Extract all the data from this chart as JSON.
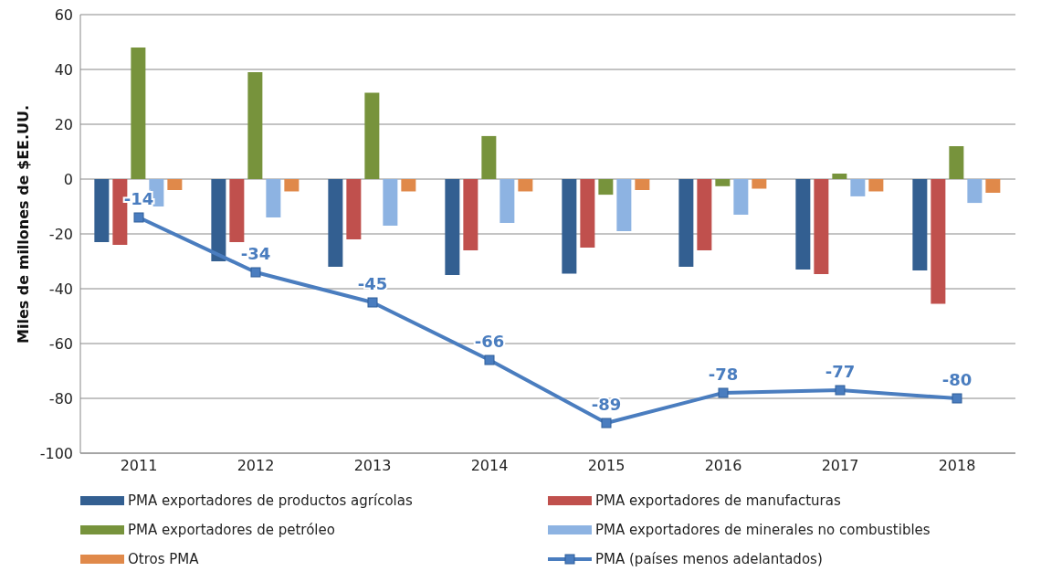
{
  "chart_data": {
    "type": "bar",
    "ylabel": "Miles de millones de $EE.UU.",
    "categories": [
      "2011",
      "2012",
      "2013",
      "2014",
      "2015",
      "2016",
      "2017",
      "2018"
    ],
    "ylim": [
      -100,
      60
    ],
    "yticks": [
      -100,
      -80,
      -60,
      -40,
      -20,
      0,
      20,
      40,
      60
    ],
    "grid": "y",
    "legend": "bottom",
    "marker": "square",
    "series": [
      {
        "name": "PMA exportadores de productos agrícolas",
        "color": "#335f91",
        "values": [
          -23,
          -30,
          -32,
          -35,
          -34.5,
          -32,
          -33,
          -33.3
        ]
      },
      {
        "name": "PMA exportadores de manufacturas",
        "color": "#c0504d",
        "values": [
          -24,
          -23,
          -22,
          -26,
          -25,
          -26,
          -34.7,
          -45.5
        ]
      },
      {
        "name": "PMA exportadores de petróleo",
        "color": "#77933c",
        "values": [
          48,
          39,
          31.5,
          15.7,
          -5.7,
          -2.6,
          2,
          12
        ]
      },
      {
        "name": "PMA exportadores de minerales no combustibles",
        "color": "#8db3e2",
        "values": [
          -10,
          -14,
          -17,
          -16,
          -19,
          -13,
          -6.3,
          -8.7
        ]
      },
      {
        "name": "Otros PMA",
        "color": "#e0894a",
        "values": [
          -4,
          -4.5,
          -4.5,
          -4.5,
          -4,
          -3.5,
          -4.5,
          -5
        ]
      },
      {
        "name": "PMA (países menos adelantados)",
        "type": "line",
        "color": "#4a7dbf",
        "values": [
          -14,
          -34,
          -45,
          -66,
          -89,
          -78,
          -77,
          -80
        ],
        "value_labels": [
          "-14",
          "-34",
          "-45",
          "-66",
          "-89",
          "-78",
          "-77",
          "-80"
        ]
      }
    ]
  }
}
